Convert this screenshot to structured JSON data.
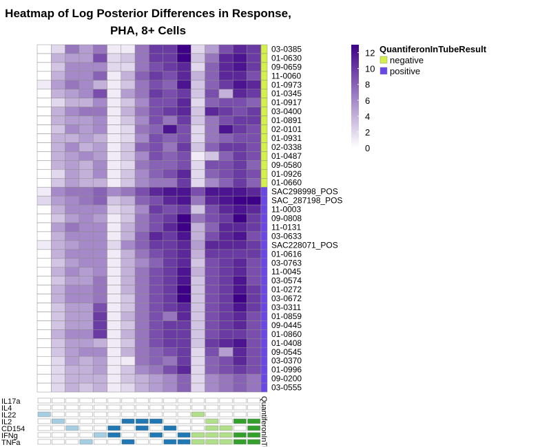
{
  "chart_data": {
    "type": "heatmap",
    "title_lines": [
      "Heatmap of Log Posterior Differences in Response,",
      "PHA, 8+ Cells"
    ],
    "rows": [
      {
        "label": "03-0385",
        "group": "negative",
        "values": [
          0,
          2,
          7,
          5,
          7,
          1,
          1,
          7,
          10,
          10,
          13,
          2,
          5,
          9,
          11,
          10
        ]
      },
      {
        "label": "01-0630",
        "group": "negative",
        "values": [
          0,
          4,
          5,
          5,
          9,
          2,
          3,
          7,
          10,
          10,
          13,
          3,
          7,
          11,
          12,
          10
        ]
      },
      {
        "label": "09-0659",
        "group": "negative",
        "values": [
          0,
          3,
          6,
          6,
          6,
          2,
          2,
          7,
          9,
          10,
          11,
          2,
          8,
          11,
          12,
          10
        ]
      },
      {
        "label": "11-0060",
        "group": "negative",
        "values": [
          0,
          4,
          6,
          6,
          8,
          1,
          4,
          8,
          10,
          9,
          11,
          4,
          8,
          11,
          11,
          9
        ]
      },
      {
        "label": "01-0973",
        "group": "negative",
        "values": [
          1,
          5,
          7,
          6,
          4,
          1,
          3,
          7,
          9,
          8,
          12,
          3,
          8,
          10,
          12,
          11
        ]
      },
      {
        "label": "01-0345",
        "group": "negative",
        "values": [
          0,
          4,
          5,
          6,
          9,
          1,
          5,
          7,
          10,
          9,
          10,
          3,
          9,
          4,
          11,
          10
        ]
      },
      {
        "label": "01-0917",
        "group": "negative",
        "values": [
          0,
          2,
          4,
          4,
          6,
          1,
          3,
          6,
          9,
          9,
          11,
          2,
          8,
          9,
          9,
          8
        ]
      },
      {
        "label": "03-0400",
        "group": "negative",
        "values": [
          0,
          4,
          6,
          7,
          7,
          1,
          4,
          7,
          9,
          10,
          11,
          3,
          11,
          10,
          9,
          10
        ]
      },
      {
        "label": "01-0891",
        "group": "negative",
        "values": [
          0,
          4,
          5,
          5,
          6,
          1,
          3,
          6,
          9,
          7,
          10,
          3,
          7,
          9,
          10,
          10
        ]
      },
      {
        "label": "02-0101",
        "group": "negative",
        "values": [
          0,
          3,
          6,
          5,
          6,
          1,
          2,
          7,
          8,
          12,
          9,
          2,
          7,
          12,
          10,
          9
        ]
      },
      {
        "label": "01-0931",
        "group": "negative",
        "values": [
          0,
          4,
          4,
          5,
          4,
          1,
          2,
          6,
          9,
          8,
          9,
          2,
          7,
          8,
          9,
          9
        ]
      },
      {
        "label": "02-0338",
        "group": "negative",
        "values": [
          0,
          4,
          6,
          4,
          5,
          1,
          3,
          8,
          9,
          7,
          10,
          3,
          8,
          10,
          10,
          9
        ]
      },
      {
        "label": "01-0487",
        "group": "negative",
        "values": [
          0,
          4,
          5,
          6,
          5,
          1,
          3,
          6,
          9,
          8,
          9,
          1,
          3,
          8,
          10,
          9
        ]
      },
      {
        "label": "09-0580",
        "group": "negative",
        "values": [
          0,
          4,
          5,
          4,
          6,
          1,
          2,
          7,
          8,
          8,
          9,
          2,
          9,
          9,
          10,
          8
        ]
      },
      {
        "label": "01-0926",
        "group": "negative",
        "values": [
          0,
          2,
          5,
          4,
          6,
          1,
          3,
          6,
          8,
          9,
          11,
          2,
          8,
          9,
          10,
          9
        ]
      },
      {
        "label": "01-0660",
        "group": "negative",
        "values": [
          0,
          3,
          5,
          4,
          4,
          1,
          3,
          6,
          7,
          7,
          10,
          2,
          6,
          8,
          10,
          8
        ]
      },
      {
        "label": "SAC298998_POS",
        "group": "positive",
        "values": [
          1,
          6,
          7,
          7,
          8,
          6,
          7,
          9,
          11,
          12,
          12,
          9,
          12,
          12,
          12,
          11
        ]
      },
      {
        "label": "SAC_287198_POS",
        "group": "positive",
        "values": [
          2,
          5,
          6,
          7,
          8,
          3,
          4,
          8,
          9,
          11,
          12,
          7,
          11,
          12,
          13,
          13
        ]
      },
      {
        "label": "11-0003",
        "group": "positive",
        "values": [
          0,
          4,
          6,
          6,
          6,
          2,
          3,
          6,
          10,
          9,
          10,
          3,
          9,
          11,
          12,
          11
        ]
      },
      {
        "label": "09-0808",
        "group": "positive",
        "values": [
          0,
          3,
          5,
          6,
          5,
          1,
          3,
          7,
          9,
          10,
          13,
          7,
          9,
          10,
          13,
          10
        ]
      },
      {
        "label": "11-0131",
        "group": "positive",
        "values": [
          0,
          5,
          7,
          6,
          6,
          1,
          4,
          7,
          9,
          11,
          13,
          4,
          8,
          11,
          11,
          10
        ]
      },
      {
        "label": "03-0633",
        "group": "positive",
        "values": [
          0,
          4,
          6,
          6,
          6,
          1,
          4,
          8,
          11,
          10,
          12,
          4,
          9,
          11,
          12,
          9
        ]
      },
      {
        "label": "SAC228071_POS",
        "group": "positive",
        "values": [
          1,
          4,
          5,
          6,
          6,
          2,
          6,
          8,
          10,
          10,
          11,
          5,
          11,
          11,
          11,
          10
        ]
      },
      {
        "label": "01-0616",
        "group": "positive",
        "values": [
          0,
          4,
          6,
          6,
          6,
          1,
          4,
          7,
          9,
          10,
          11,
          4,
          10,
          10,
          10,
          10
        ]
      },
      {
        "label": "03-0763",
        "group": "positive",
        "values": [
          0,
          3,
          5,
          6,
          6,
          1,
          4,
          6,
          8,
          10,
          11,
          3,
          9,
          10,
          11,
          9
        ]
      },
      {
        "label": "11-0045",
        "group": "positive",
        "values": [
          0,
          4,
          6,
          5,
          6,
          1,
          4,
          7,
          9,
          10,
          12,
          4,
          9,
          10,
          11,
          9
        ]
      },
      {
        "label": "03-0574",
        "group": "positive",
        "values": [
          0,
          3,
          5,
          5,
          7,
          1,
          4,
          7,
          9,
          10,
          12,
          3,
          9,
          10,
          12,
          9
        ]
      },
      {
        "label": "01-0272",
        "group": "positive",
        "values": [
          0,
          4,
          6,
          6,
          7,
          1,
          4,
          7,
          9,
          10,
          13,
          3,
          9,
          10,
          12,
          10
        ]
      },
      {
        "label": "03-0672",
        "group": "positive",
        "values": [
          0,
          4,
          6,
          6,
          7,
          1,
          3,
          7,
          9,
          10,
          13,
          3,
          9,
          10,
          13,
          10
        ]
      },
      {
        "label": "03-0311",
        "group": "positive",
        "values": [
          0,
          3,
          5,
          5,
          9,
          1,
          3,
          7,
          9,
          10,
          11,
          3,
          9,
          10,
          12,
          10
        ]
      },
      {
        "label": "01-0859",
        "group": "positive",
        "values": [
          0,
          3,
          5,
          5,
          10,
          1,
          4,
          7,
          9,
          7,
          11,
          3,
          9,
          10,
          11,
          9
        ]
      },
      {
        "label": "09-0445",
        "group": "positive",
        "values": [
          0,
          3,
          5,
          5,
          10,
          1,
          3,
          7,
          9,
          10,
          10,
          3,
          9,
          10,
          11,
          9
        ]
      },
      {
        "label": "01-0860",
        "group": "positive",
        "values": [
          0,
          4,
          6,
          6,
          10,
          1,
          4,
          7,
          9,
          10,
          10,
          3,
          9,
          10,
          10,
          9
        ]
      },
      {
        "label": "01-0408",
        "group": "positive",
        "values": [
          0,
          3,
          5,
          5,
          4,
          1,
          3,
          7,
          9,
          10,
          10,
          3,
          10,
          11,
          12,
          9
        ]
      },
      {
        "label": "09-0545",
        "group": "positive",
        "values": [
          0,
          3,
          5,
          6,
          6,
          1,
          4,
          7,
          8,
          9,
          10,
          2,
          9,
          5,
          11,
          9
        ]
      },
      {
        "label": "03-0370",
        "group": "positive",
        "values": [
          0,
          2,
          5,
          4,
          5,
          1,
          1,
          7,
          8,
          7,
          10,
          2,
          8,
          9,
          11,
          9
        ]
      },
      {
        "label": "01-0996",
        "group": "positive",
        "values": [
          0,
          2,
          4,
          4,
          5,
          1,
          3,
          6,
          7,
          9,
          11,
          2,
          8,
          9,
          10,
          9
        ]
      },
      {
        "label": "09-0200",
        "group": "positive",
        "values": [
          0,
          2,
          4,
          4,
          4,
          1,
          3,
          4,
          5,
          6,
          8,
          2,
          6,
          7,
          8,
          7
        ]
      },
      {
        "label": "03-0555",
        "group": "positive",
        "values": [
          0,
          2,
          4,
          3,
          4,
          1,
          2,
          4,
          5,
          6,
          8,
          2,
          6,
          7,
          8,
          7
        ]
      }
    ],
    "colorbar": {
      "min": 0,
      "max": 13,
      "ticks": [
        0,
        2,
        4,
        6,
        8,
        10,
        12
      ],
      "low_color": "#ffffff",
      "high_color": "#3d0087"
    },
    "group_legend": {
      "title": "QuantiferonInTubeResult",
      "entries": [
        {
          "name": "negative",
          "color": "#d4f04a"
        },
        {
          "name": "positive",
          "color": "#6a48e8"
        }
      ]
    },
    "side_bar_label": "QuantiferonInTu",
    "cytokines": [
      {
        "name": "IL17a",
        "on": [
          0,
          0,
          0,
          0,
          0,
          0,
          0,
          0,
          0,
          0,
          0,
          0,
          0,
          0,
          0,
          0
        ]
      },
      {
        "name": "IL4",
        "on": [
          0,
          0,
          0,
          0,
          0,
          0,
          0,
          0,
          0,
          0,
          0,
          0,
          0,
          0,
          0,
          0
        ]
      },
      {
        "name": "IL22",
        "on": [
          1,
          0,
          0,
          0,
          0,
          0,
          0,
          0,
          0,
          0,
          0,
          1,
          0,
          0,
          0,
          0
        ]
      },
      {
        "name": "IL2",
        "on": [
          0,
          1,
          0,
          0,
          0,
          0,
          1,
          1,
          1,
          0,
          0,
          0,
          1,
          0,
          1,
          1
        ]
      },
      {
        "name": "CD154",
        "on": [
          0,
          0,
          1,
          0,
          0,
          1,
          0,
          1,
          0,
          1,
          0,
          0,
          1,
          1,
          0,
          1
        ]
      },
      {
        "name": "IFNg",
        "on": [
          0,
          0,
          0,
          0,
          1,
          1,
          0,
          0,
          1,
          0,
          1,
          1,
          1,
          1,
          1,
          1
        ]
      },
      {
        "name": "TNFa",
        "on": [
          0,
          0,
          0,
          1,
          0,
          0,
          1,
          0,
          0,
          1,
          1,
          1,
          1,
          1,
          1,
          1
        ]
      }
    ],
    "cytokine_colors": {
      "IL17a": "#a6cee3",
      "IL4": "#a6cee3",
      "IL22": "#a6cee3",
      "IL2": "#a6cee3",
      "CD154": "#a6cee3",
      "IFNg": "#a6cee3",
      "TNFa": "#a6cee3",
      "dark_blue": "#1f78b4",
      "light_green": "#b2df8a",
      "dark_green": "#33a02c"
    }
  }
}
